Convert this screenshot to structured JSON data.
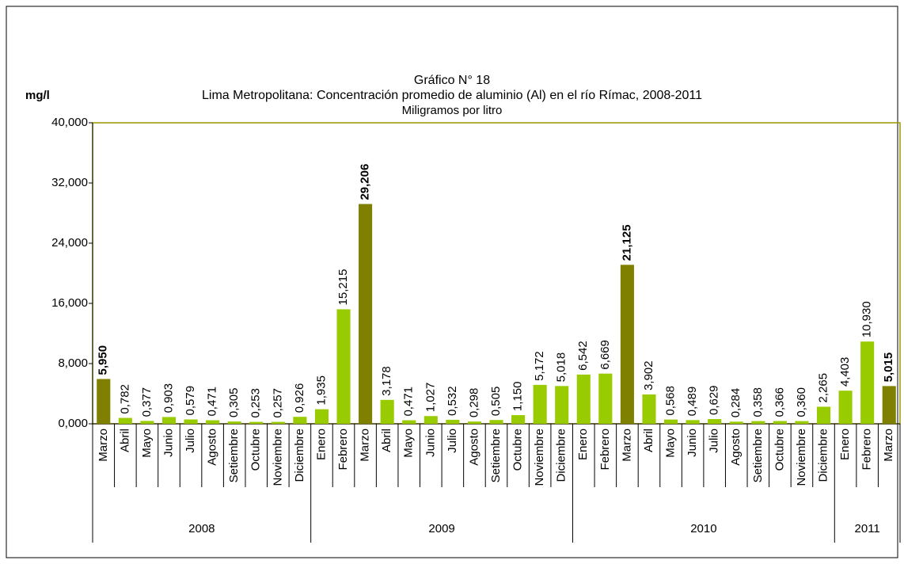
{
  "chart_data": {
    "type": "bar",
    "title": "Gráfico N° 18",
    "subtitle": "Lima Metropolitana: Concentración promedio de aluminio (Al) en el río Rímac, 2008-2011",
    "unit_note": "Miligramos por litro",
    "y_label": "mg/l",
    "groups": [
      {
        "label": "2008",
        "categories": [
          "Marzo",
          "Abril",
          "Mayo",
          "Junio",
          "Julio",
          "Agosto",
          "Setiembre",
          "Octubre",
          "Noviembre",
          "Diciembre"
        ]
      },
      {
        "label": "2009",
        "categories": [
          "Enero",
          "Febrero",
          "Marzo",
          "Abril",
          "Mayo",
          "Junio",
          "Julio",
          "Agosto",
          "Setiembre",
          "Octubre",
          "Noviembre",
          "Diciembre"
        ]
      },
      {
        "label": "2010",
        "categories": [
          "Enero",
          "Febrero",
          "Marzo",
          "Abril",
          "Mayo",
          "Junio",
          "Julio",
          "Agosto",
          "Setiembre",
          "Octubre",
          "Noviembre",
          "Diciembre"
        ]
      },
      {
        "label": "2011",
        "categories": [
          "Enero",
          "Febrero",
          "Marzo"
        ]
      }
    ],
    "values": [
      5.95,
      0.782,
      0.377,
      0.903,
      0.579,
      0.471,
      0.305,
      0.253,
      0.257,
      0.926,
      1.935,
      15.215,
      29.206,
      3.178,
      0.471,
      1.027,
      0.532,
      0.298,
      0.505,
      1.15,
      5.172,
      5.018,
      6.542,
      6.669,
      21.125,
      3.902,
      0.568,
      0.489,
      0.629,
      0.284,
      0.358,
      0.366,
      0.36,
      2.265,
      4.403,
      10.93,
      5.015
    ],
    "value_labels": [
      "5,950",
      "0,782",
      "0,377",
      "0,903",
      "0,579",
      "0,471",
      "0,305",
      "0,253",
      "0,257",
      "0,926",
      "1,935",
      "15,215",
      "29,206",
      "3,178",
      "0,471",
      "1,027",
      "0,532",
      "0,298",
      "0,505",
      "1,150",
      "5,172",
      "5,018",
      "6,542",
      "6,669",
      "21,125",
      "3,902",
      "0,568",
      "0,489",
      "0,629",
      "0,284",
      "0,358",
      "0,366",
      "0,360",
      "2,265",
      "4,403",
      "10,930",
      "5,015"
    ],
    "color": "#99cc00",
    "colors": [
      "#808000",
      "#99cc00",
      "#99cc00",
      "#99cc00",
      "#99cc00",
      "#99cc00",
      "#99cc00",
      "#99cc00",
      "#99cc00",
      "#99cc00",
      "#99cc00",
      "#99cc00",
      "#808000",
      "#99cc00",
      "#99cc00",
      "#99cc00",
      "#99cc00",
      "#99cc00",
      "#99cc00",
      "#99cc00",
      "#99cc00",
      "#99cc00",
      "#99cc00",
      "#99cc00",
      "#808000",
      "#99cc00",
      "#99cc00",
      "#99cc00",
      "#99cc00",
      "#99cc00",
      "#99cc00",
      "#99cc00",
      "#99cc00",
      "#99cc00",
      "#99cc00",
      "#99cc00",
      "#808000"
    ],
    "ylim": [
      0,
      40
    ],
    "yticks": [
      {
        "value": 0,
        "label": "0,000"
      },
      {
        "value": 8,
        "label": "8,000"
      },
      {
        "value": 16,
        "label": "16,000"
      },
      {
        "value": 24,
        "label": "24,000"
      },
      {
        "value": 32,
        "label": "32,000"
      },
      {
        "value": 40,
        "label": "40,000"
      }
    ],
    "grid": false
  }
}
